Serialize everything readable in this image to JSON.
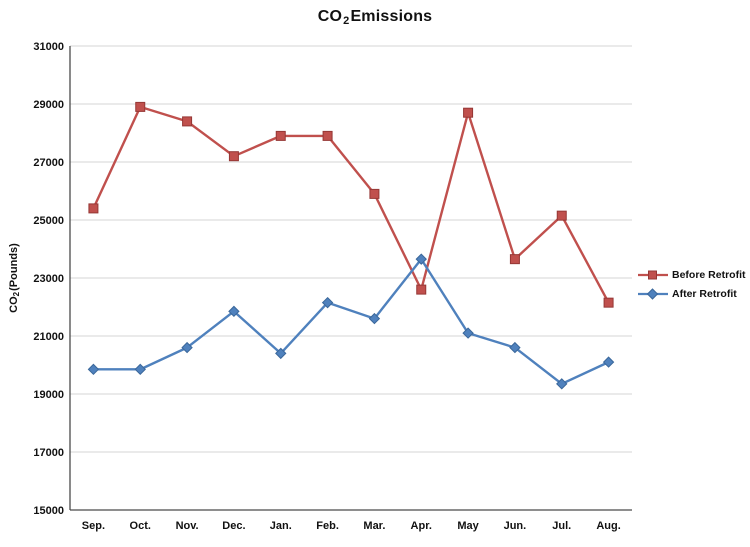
{
  "title": {
    "prefix": "CO",
    "subscript": "2",
    "suffix": " Emissions"
  },
  "y_axis_title": {
    "prefix": "CO",
    "subscript": "2",
    "suffix": " (Pounds)"
  },
  "chart_data": {
    "type": "line",
    "title": "CO2 Emissions",
    "ylabel": "CO2 (Pounds)",
    "categories": [
      "Sep.",
      "Oct.",
      "Nov.",
      "Dec.",
      "Jan.",
      "Feb.",
      "Mar.",
      "Apr.",
      "May",
      "Jun.",
      "Jul.",
      "Aug."
    ],
    "series": [
      {
        "name": "Before Retrofit",
        "color": "#C0504D",
        "marker_stroke": "#953735",
        "marker": "square",
        "values": [
          25400,
          28900,
          28400,
          27200,
          27900,
          27900,
          25900,
          22600,
          28700,
          23650,
          25150,
          22150
        ]
      },
      {
        "name": "After Retrofit",
        "color": "#4F81BD",
        "marker_stroke": "#3A679A",
        "marker": "diamond",
        "values": [
          19850,
          19850,
          20600,
          21850,
          20400,
          22150,
          21600,
          23650,
          21100,
          20600,
          19350,
          20100
        ]
      }
    ],
    "ylim": [
      15000,
      31000
    ],
    "yticks": [
      15000,
      17000,
      19000,
      21000,
      23000,
      25000,
      27000,
      29000,
      31000
    ],
    "grid": true,
    "legend_position": "right"
  },
  "colors": {
    "grid": "#D6D6D6",
    "axis": "#4a4a4a",
    "background": "#FFFFFF",
    "text": "#111111"
  }
}
